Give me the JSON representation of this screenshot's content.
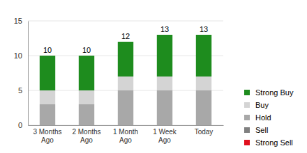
{
  "chart_data": {
    "type": "bar",
    "stacked": true,
    "grid": true,
    "legend": "right",
    "data_labels": false,
    "categories": [
      "3 Months Ago",
      "2 Months Ago",
      "1 Month Ago",
      "1 Week Ago",
      "Today"
    ],
    "series": [
      {
        "name": "Strong Buy",
        "color": "#1e8c1e",
        "values": [
          5,
          5,
          5,
          6,
          6
        ]
      },
      {
        "name": "Buy",
        "color": "#d4d4d4",
        "values": [
          2,
          2,
          2,
          2,
          2
        ]
      },
      {
        "name": "Hold",
        "color": "#a8a8a8",
        "values": [
          3,
          3,
          5,
          5,
          5
        ]
      },
      {
        "name": "Sell",
        "color": "#808080",
        "values": [
          0,
          0,
          0,
          0,
          0
        ]
      },
      {
        "name": "Strong Sell",
        "color": "#e0101e",
        "values": [
          0,
          0,
          0,
          0,
          0
        ]
      }
    ],
    "totals": [
      10,
      10,
      12,
      13,
      13
    ],
    "ylim": [
      0,
      15
    ],
    "yticks": [
      0,
      5,
      10,
      15
    ]
  }
}
